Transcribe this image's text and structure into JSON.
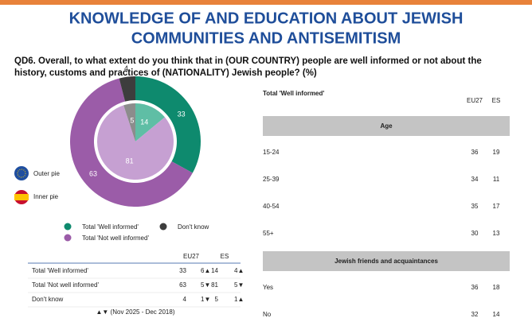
{
  "header": {
    "title_lines": [
      "KNOWLEDGE OF AND EDUCATION ABOUT JEWISH",
      "COMMUNITIES AND ANTISEMITISM"
    ],
    "question_lines": [
      "QD6. Overall, to what extent do you think that in (OUR COUNTRY) people are well informed or not about the",
      "history, customs and practices of (NATIONALITY) Jewish people? (%)"
    ]
  },
  "chart_data": {
    "type": "donut",
    "categories": [
      "Total 'Well informed'",
      "Total 'Not well informed'",
      "Don't know"
    ],
    "series": [
      {
        "name": "Outer pie",
        "colors": [
          "#0e8a6e",
          "#9b5ca8",
          "#3d3d3d"
        ],
        "values": [
          33,
          63,
          4
        ]
      },
      {
        "name": "Inner pie",
        "colors": [
          "#5fbea5",
          "#c6a0d2",
          "#8c8c8c"
        ],
        "values": [
          14,
          81,
          5
        ]
      }
    ]
  },
  "trend_table": {
    "columns": [
      "EU27",
      "ES"
    ],
    "rows": [
      {
        "label": "Total 'Well informed'",
        "cells": [
          "33",
          "6▲",
          "14",
          "4▲"
        ]
      },
      {
        "label": "Total 'Not well informed'",
        "cells": [
          "63",
          "5▼",
          "81",
          "5▼"
        ]
      },
      {
        "label": "Don't know",
        "cells": [
          "4",
          "1▼",
          "5",
          "1▲"
        ]
      }
    ],
    "note": "▲▼ (Nov 2025 - Dec 2018)"
  },
  "breakdown_table": {
    "title": "Total 'Well informed'",
    "columns": [
      "EU27",
      "ES"
    ],
    "sections": [
      {
        "name": "Age",
        "rows": [
          {
            "label": "15-24",
            "cells": [
              "36",
              "19"
            ]
          },
          {
            "label": "25-39",
            "cells": [
              "34",
              "11"
            ]
          },
          {
            "label": "40-54",
            "cells": [
              "35",
              "17"
            ]
          },
          {
            "label": "55+",
            "cells": [
              "30",
              "13"
            ]
          }
        ]
      },
      {
        "name": "Jewish friends and acquaintances",
        "rows": [
          {
            "label": "Yes",
            "cells": [
              "36",
              "18"
            ]
          },
          {
            "label": "No",
            "cells": [
              "32",
              "14"
            ]
          }
        ]
      }
    ]
  }
}
